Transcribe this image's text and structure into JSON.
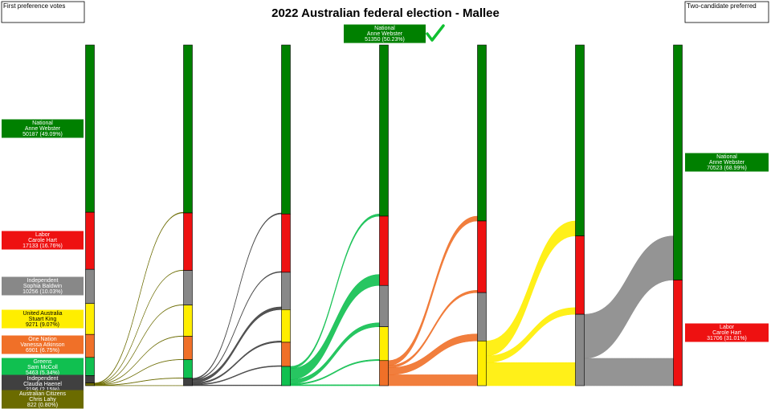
{
  "chart_data": {
    "type": "sankey",
    "title": "2022 Australian federal election - Mallee",
    "left_heading": "First preference votes",
    "right_heading": "Two-candidate preferred",
    "candidates": [
      {
        "party": "National",
        "name": "Anne Webster",
        "color": "#008000"
      },
      {
        "party": "Labor",
        "name": "Carole Hart",
        "color": "#ee1111"
      },
      {
        "party": "Independent",
        "name": "Sophia Baldwin",
        "color": "#888888"
      },
      {
        "party": "United Australia",
        "name": "Stuart King",
        "color": "#ffee00"
      },
      {
        "party": "One Nation",
        "name": "Vanessa Atkinson",
        "color": "#f07028"
      },
      {
        "party": "Greens",
        "name": "Sam McColl",
        "color": "#10c050"
      },
      {
        "party": "Independent",
        "name": "Claudia Haenel",
        "color": "#404040"
      },
      {
        "party": "Australian Citizens",
        "name": "Chris Lahy",
        "color": "#6b6b00"
      }
    ],
    "rounds": [
      [
        50187,
        17133,
        10256,
        9271,
        6901,
        5463,
        2196,
        822
      ],
      [
        50400,
        17250,
        10380,
        9390,
        7000,
        5570,
        2239,
        null
      ],
      [
        50700,
        17500,
        11200,
        9800,
        7250,
        5779,
        null,
        null
      ],
      [
        51350,
        20800,
        12400,
        10150,
        7529,
        null,
        null,
        null
      ],
      [
        52800,
        21500,
        14500,
        13429,
        null,
        null,
        null,
        null
      ],
      [
        57300,
        23500,
        21429,
        null,
        null,
        null,
        null,
        null
      ],
      [
        70523,
        31706,
        null,
        null,
        null,
        null,
        null,
        null
      ]
    ],
    "transfers": [
      [
        213,
        117,
        124,
        119,
        99,
        107,
        43,
        null
      ],
      [
        300,
        250,
        820,
        410,
        250,
        209,
        null,
        null
      ],
      [
        650,
        3300,
        1200,
        350,
        279,
        null,
        null,
        null
      ],
      [
        1450,
        700,
        2100,
        3279,
        null,
        null,
        null,
        null
      ],
      [
        4500,
        2000,
        6929,
        null,
        null,
        null,
        null,
        null
      ],
      [
        13223,
        8206,
        null,
        null,
        null,
        null,
        null,
        null
      ]
    ],
    "first_preference_labels": [
      "50187 (49.09%)",
      "17133 (16.76%)",
      "10256 (10.03%)",
      "9271 (9.07%)",
      "6901 (6.75%)",
      "5463 (5.34%)",
      "2196 (2.15%)",
      "822 (0.80%)"
    ],
    "winner_label": "51350 (50.23%)",
    "final_labels": [
      "70523 (68.99%)",
      "31706 (31.01%)"
    ]
  }
}
